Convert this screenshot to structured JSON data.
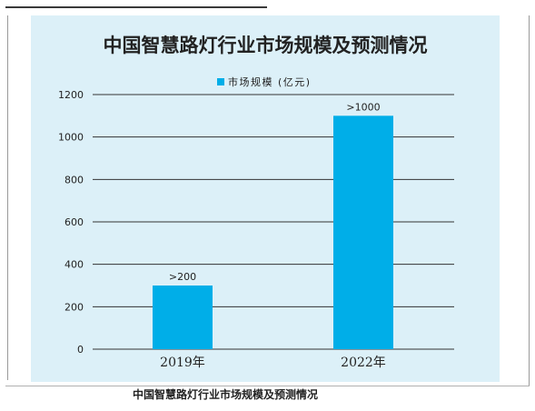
{
  "caption": "中国智慧路灯行业市场规模及预测情况",
  "chart_data": {
    "type": "bar",
    "title": "中国智慧路灯行业市场规模及预测情况",
    "categories": [
      "2019年",
      "2022年"
    ],
    "series": [
      {
        "name": "市场规模 (亿元)",
        "values": [
          300,
          1100
        ],
        "data_labels": [
          ">200",
          ">1000"
        ]
      }
    ],
    "yticks": [
      0,
      200,
      400,
      600,
      800,
      1000,
      1200
    ],
    "ylim": [
      0,
      1200
    ],
    "grid": true,
    "legend_position": "top-center",
    "colors": {
      "bar": "#00aee8",
      "panel": "#dcf0f8",
      "grid": "#333333",
      "text": "#222222"
    }
  }
}
